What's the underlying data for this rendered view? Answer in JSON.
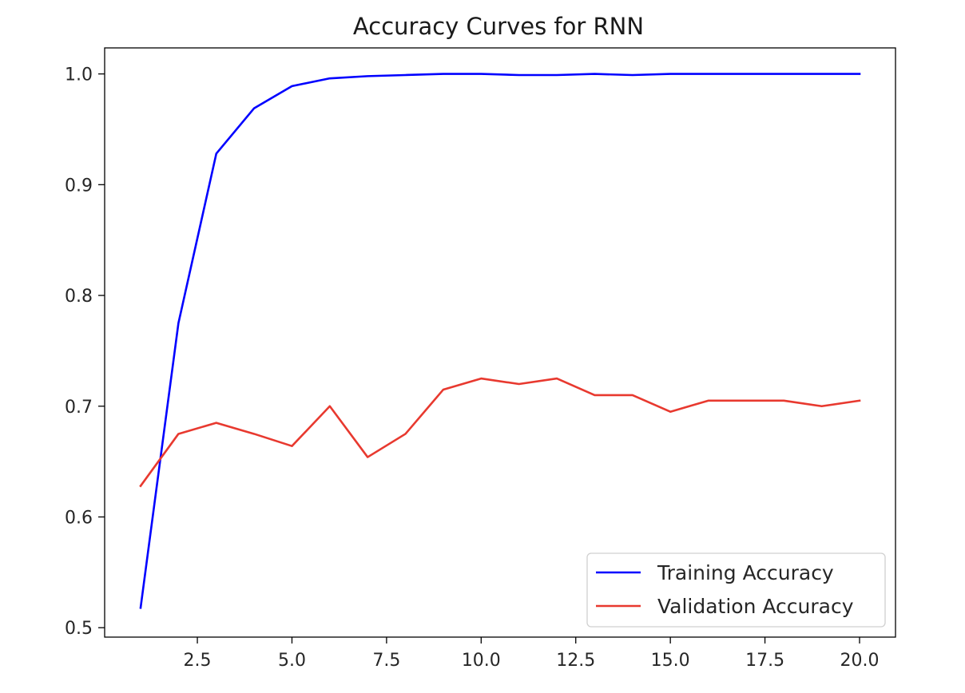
{
  "chart_data": {
    "type": "line",
    "title": "Accuracy Curves for RNN",
    "xlabel": "",
    "ylabel": "",
    "xlim": [
      0.05,
      20.95
    ],
    "ylim": [
      0.4915,
      1.0235
    ],
    "x_ticks": [
      2.5,
      5.0,
      7.5,
      10.0,
      12.5,
      15.0,
      17.5,
      20.0
    ],
    "x_tick_labels": [
      "2.5",
      "5.0",
      "7.5",
      "10.0",
      "12.5",
      "15.0",
      "17.5",
      "20.0"
    ],
    "y_ticks": [
      0.5,
      0.6,
      0.7,
      0.8,
      0.9,
      1.0
    ],
    "y_tick_labels": [
      "0.5",
      "0.6",
      "0.7",
      "0.8",
      "0.9",
      "1.0"
    ],
    "grid": false,
    "legend_position": "lower-right",
    "x": [
      1,
      2,
      3,
      4,
      5,
      6,
      7,
      8,
      9,
      10,
      11,
      12,
      13,
      14,
      15,
      16,
      17,
      18,
      19,
      20
    ],
    "series": [
      {
        "name": "Training Accuracy",
        "color": "#0000ff",
        "values": [
          0.518,
          0.775,
          0.928,
          0.969,
          0.989,
          0.996,
          0.998,
          0.999,
          1.0,
          1.0,
          0.999,
          0.999,
          1.0,
          0.999,
          1.0,
          1.0,
          1.0,
          1.0,
          1.0,
          1.0
        ]
      },
      {
        "name": "Validation Accuracy",
        "color": "#e8392f",
        "values": [
          0.628,
          0.675,
          0.685,
          0.675,
          0.664,
          0.7,
          0.654,
          0.675,
          0.715,
          0.725,
          0.72,
          0.725,
          0.71,
          0.71,
          0.695,
          0.705,
          0.705,
          0.705,
          0.7,
          0.705
        ]
      }
    ]
  }
}
